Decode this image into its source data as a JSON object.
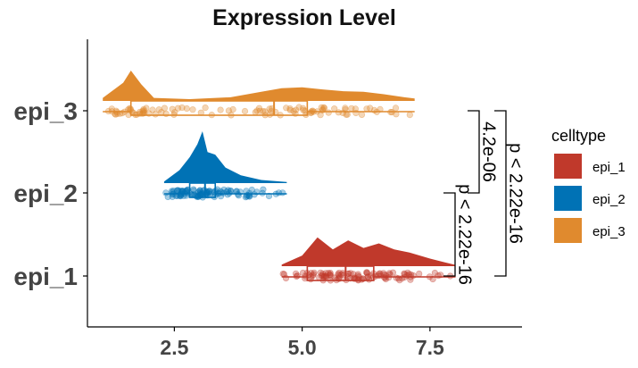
{
  "chart_data": {
    "type": "raincloud",
    "title": "Expression Level",
    "xlabel": "",
    "ylabel": "",
    "xlim": [
      0.8,
      9.3
    ],
    "x_ticks": [
      "2.5",
      "5.0",
      "7.5"
    ],
    "x_tick_values": [
      2.5,
      5.0,
      7.5
    ],
    "categories": [
      "epi_3",
      "epi_2",
      "epi_1"
    ],
    "grid": false,
    "legend": {
      "title": "celltype",
      "placement": "right",
      "entries": [
        "epi_1",
        "epi_2",
        "epi_3"
      ]
    },
    "series": [
      {
        "name": "epi_1",
        "color": "#c0392b",
        "range": [
          4.6,
          8.0
        ],
        "box": {
          "min": 4.6,
          "q1": 5.1,
          "median": 5.85,
          "q3": 6.4,
          "max": 8.0
        },
        "density": [
          [
            4.6,
            0.05
          ],
          [
            5.0,
            0.35
          ],
          [
            5.3,
            0.95
          ],
          [
            5.6,
            0.55
          ],
          [
            5.9,
            0.85
          ],
          [
            6.2,
            0.6
          ],
          [
            6.5,
            0.75
          ],
          [
            6.8,
            0.55
          ],
          [
            7.1,
            0.45
          ],
          [
            7.5,
            0.25
          ],
          [
            7.8,
            0.12
          ],
          [
            8.0,
            0.04
          ]
        ]
      },
      {
        "name": "epi_2",
        "color": "#0072b5",
        "range": [
          2.3,
          4.7
        ],
        "box": {
          "min": 2.3,
          "q1": 2.8,
          "median": 3.1,
          "q3": 3.3,
          "max": 4.7
        },
        "density": [
          [
            2.3,
            0.03
          ],
          [
            2.6,
            0.25
          ],
          [
            2.8,
            0.5
          ],
          [
            2.95,
            0.75
          ],
          [
            3.05,
            1.0
          ],
          [
            3.15,
            0.6
          ],
          [
            3.3,
            0.55
          ],
          [
            3.5,
            0.3
          ],
          [
            3.8,
            0.15
          ],
          [
            4.2,
            0.06
          ],
          [
            4.7,
            0.02
          ]
        ]
      },
      {
        "name": "epi_3",
        "color": "#e08a2e",
        "range": [
          1.1,
          7.2
        ],
        "box": {
          "min": 1.1,
          "q1": 1.65,
          "median": 4.45,
          "q3": 5.1,
          "max": 7.2
        },
        "density": [
          [
            1.1,
            0.1
          ],
          [
            1.5,
            0.6
          ],
          [
            1.65,
            1.0
          ],
          [
            1.85,
            0.55
          ],
          [
            2.1,
            0.1
          ],
          [
            2.8,
            0.06
          ],
          [
            3.6,
            0.12
          ],
          [
            4.2,
            0.3
          ],
          [
            4.6,
            0.42
          ],
          [
            5.0,
            0.45
          ],
          [
            5.4,
            0.38
          ],
          [
            5.8,
            0.32
          ],
          [
            6.2,
            0.3
          ],
          [
            6.6,
            0.22
          ],
          [
            7.0,
            0.12
          ],
          [
            7.2,
            0.08
          ]
        ]
      }
    ],
    "comparisons": [
      {
        "groups": [
          "epi_1",
          "epi_2"
        ],
        "label": "p < 2.22e-16"
      },
      {
        "groups": [
          "epi_2",
          "epi_3"
        ],
        "label": "4.2e-06"
      },
      {
        "groups": [
          "epi_1",
          "epi_3"
        ],
        "label": "p < 2.22e-16"
      }
    ]
  }
}
